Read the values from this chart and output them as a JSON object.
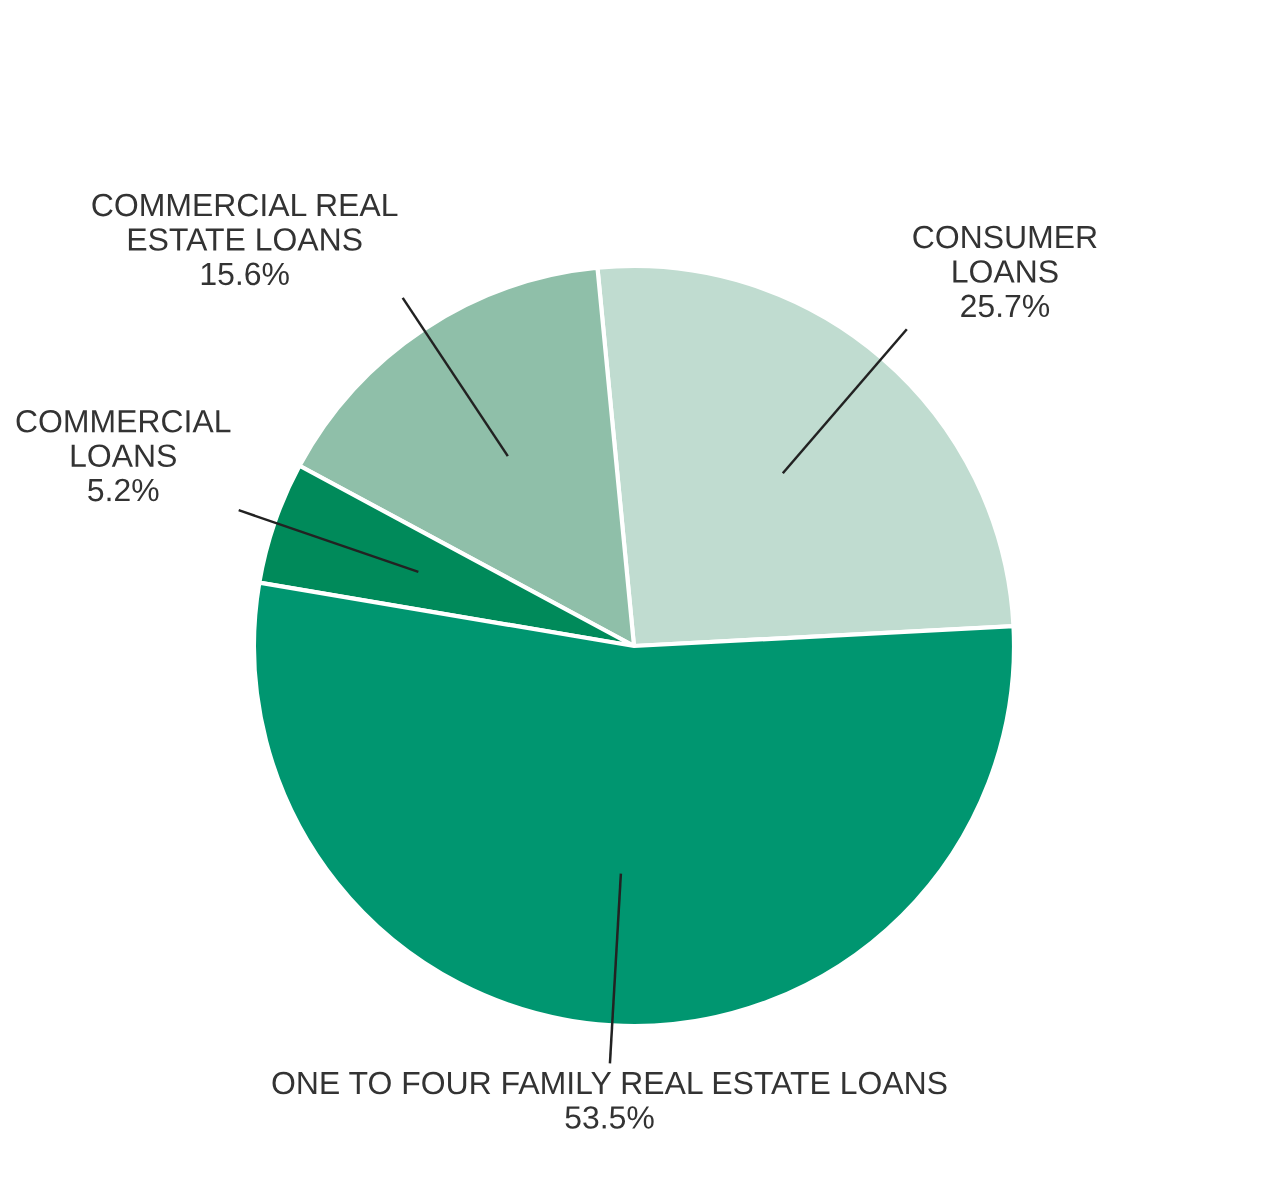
{
  "chart_data": {
    "type": "pie",
    "categories": [
      "CONSUMER\nLOANS",
      "COMMERCIAL REAL\nESTATE LOANS",
      "COMMERCIAL\nLOANS",
      "ONE TO FOUR FAMILY REAL ESTATE LOANS"
    ],
    "values": [
      25.7,
      15.6,
      5.2,
      53.5
    ],
    "value_labels": [
      "25.7%",
      "15.6%",
      "5.2%",
      "53.5%"
    ],
    "colors": [
      "#c0dcd0",
      "#8fbfa9",
      "#008a5a",
      "#009670"
    ],
    "legend": false
  }
}
